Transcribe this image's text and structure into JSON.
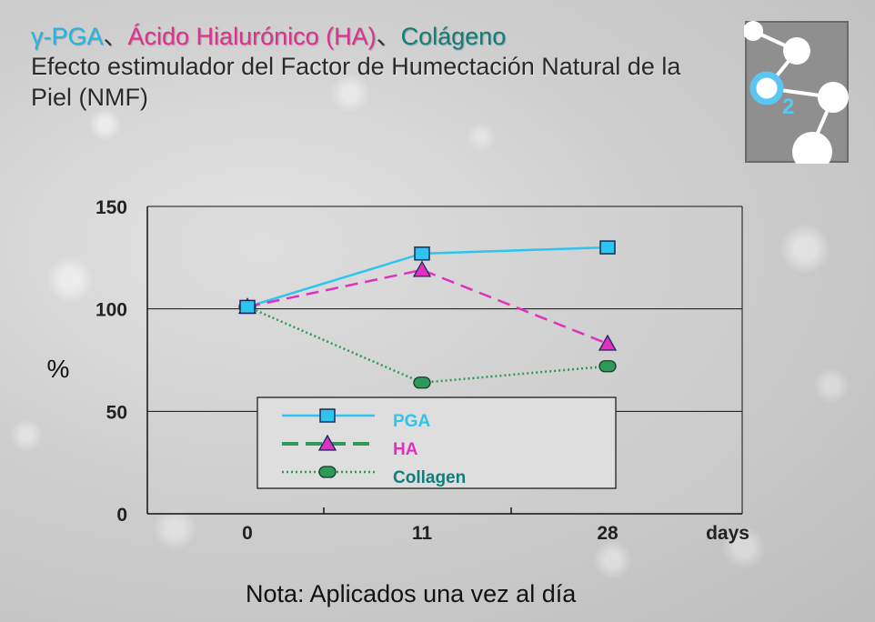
{
  "title": {
    "part1": "γ-PGA",
    "sep1": "、",
    "part2": "Ácido Hialurónico (HA)",
    "sep2": "、",
    "part3": "Colágeno"
  },
  "subtitle": "Efecto estimulador del Factor de Humectación Natural de la Piel (NMF)",
  "logo": {
    "icon": "oxygen-molecule-icon",
    "label": "2",
    "colors": {
      "background": "#8f8f8f",
      "accent": "#5bc6f0",
      "node": "#ffffff"
    }
  },
  "note": "Nota: Aplicados una vez al día",
  "chart_data": {
    "type": "line",
    "x": [
      0,
      11,
      28
    ],
    "categories": [
      "0",
      "11",
      "28"
    ],
    "xlabel": "days",
    "ylabel": "%",
    "ylim": [
      0,
      150
    ],
    "yticks": [
      0,
      50,
      100,
      150
    ],
    "grid": true,
    "legend": "bottom-center",
    "series": [
      {
        "name": "PGA",
        "values": [
          101,
          127,
          130
        ],
        "color": "#2ec4f0",
        "marker": "square",
        "line": "solid"
      },
      {
        "name": "HA",
        "values": [
          101,
          119,
          83
        ],
        "color": "#e030c0",
        "marker": "triangle",
        "line": "dashed",
        "legend_line_color": "#2e9a5a"
      },
      {
        "name": "Collagen",
        "values": [
          101,
          64,
          72
        ],
        "color": "#2e9a5a",
        "marker": "circle",
        "line": "dotted"
      }
    ],
    "legend_label_colors": [
      "#2ec4f0",
      "#e030c0",
      "#0f7f7a"
    ]
  }
}
